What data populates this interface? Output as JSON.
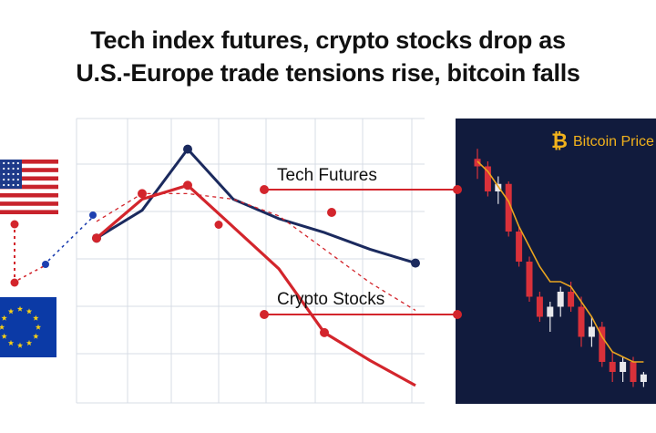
{
  "headline": {
    "line1": "Tech index futures, crypto stocks drop as",
    "line2": "U.S.-Europe trade tensions rise, bitcoin falls"
  },
  "flags": [
    {
      "name": "United States",
      "icon": "us-flag-icon"
    },
    {
      "name": "European Union",
      "icon": "eu-flag-icon"
    }
  ],
  "colors": {
    "tech_futures": "#1b2a5e",
    "crypto_stocks": "#d3252c",
    "grid": "#d7dce6",
    "btc_panel_bg": "#111b3d",
    "btc_price_line": "#e9a41f",
    "candle_up": "#e8e8ec",
    "candle_down": "#d9313a"
  },
  "chart_data": [
    {
      "type": "line",
      "title": "",
      "axes_visible": false,
      "grid": true,
      "x": [
        0,
        1,
        2,
        3,
        4,
        5,
        6,
        7
      ],
      "series": [
        {
          "name": "Tech Futures",
          "x": [
            0,
            1,
            2,
            3,
            4,
            5,
            6,
            7
          ],
          "values": [
            56,
            66,
            88,
            70,
            63,
            58,
            52,
            47
          ]
        },
        {
          "name": "Crypto Stocks",
          "x": [
            0,
            1,
            2,
            3,
            4,
            5,
            6,
            7
          ],
          "values": [
            56,
            70,
            75,
            60,
            45,
            22,
            12,
            3
          ]
        },
        {
          "name": "",
          "style": "dashed",
          "x": [
            0,
            1,
            2,
            3,
            4,
            5,
            6,
            7
          ],
          "values": [
            62,
            72,
            72,
            70,
            64,
            52,
            40,
            30
          ]
        }
      ]
    },
    {
      "type": "candlestick",
      "title": "Bitcoin Price",
      "axes_visible": false,
      "candles": [
        {
          "o": 93,
          "h": 97,
          "l": 85,
          "c": 90
        },
        {
          "o": 90,
          "h": 92,
          "l": 78,
          "c": 80
        },
        {
          "o": 80,
          "h": 86,
          "l": 75,
          "c": 83
        },
        {
          "o": 83,
          "h": 84,
          "l": 62,
          "c": 64
        },
        {
          "o": 64,
          "h": 66,
          "l": 50,
          "c": 52
        },
        {
          "o": 52,
          "h": 54,
          "l": 36,
          "c": 38
        },
        {
          "o": 38,
          "h": 40,
          "l": 28,
          "c": 30
        },
        {
          "o": 30,
          "h": 36,
          "l": 24,
          "c": 34
        },
        {
          "o": 34,
          "h": 42,
          "l": 30,
          "c": 40
        },
        {
          "o": 40,
          "h": 44,
          "l": 32,
          "c": 34
        },
        {
          "o": 34,
          "h": 38,
          "l": 18,
          "c": 22
        },
        {
          "o": 22,
          "h": 30,
          "l": 18,
          "c": 26
        },
        {
          "o": 26,
          "h": 28,
          "l": 10,
          "c": 12
        },
        {
          "o": 12,
          "h": 16,
          "l": 4,
          "c": 8
        },
        {
          "o": 8,
          "h": 14,
          "l": 4,
          "c": 12
        },
        {
          "o": 12,
          "h": 14,
          "l": 2,
          "c": 4
        },
        {
          "o": 4,
          "h": 8,
          "l": 2,
          "c": 7
        }
      ],
      "series": [
        {
          "name": "Bitcoin Price",
          "values": [
            92,
            88,
            82,
            76,
            66,
            58,
            50,
            44,
            44,
            42,
            36,
            30,
            22,
            16,
            14,
            12,
            12
          ]
        }
      ]
    }
  ]
}
